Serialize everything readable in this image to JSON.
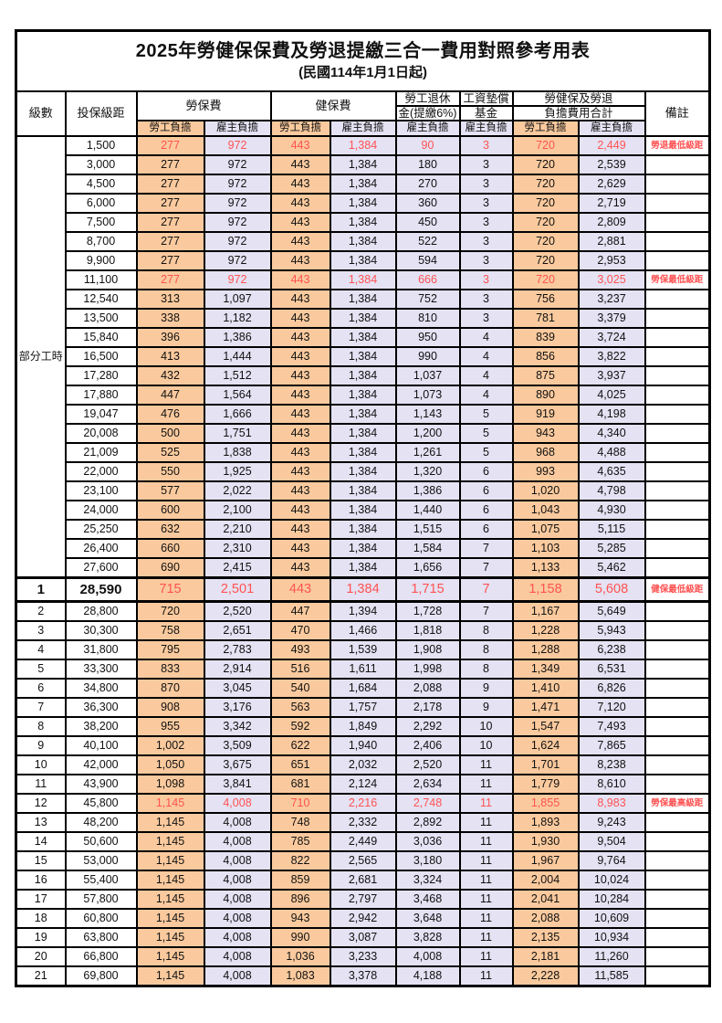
{
  "title": "2025年勞健保保費及勞退提繳三合一費用對照參考用表",
  "subtitle": "(民國114年1月1日起)",
  "colors": {
    "employee_bg": "#FACA9E",
    "employer_bg": "#E4E2F3",
    "highlight_red": "#FF5252",
    "border": "#000000"
  },
  "header": {
    "level": "級數",
    "bracket": "投保級距",
    "labor_insurance": "勞保費",
    "health_insurance": "健保費",
    "pension_line1": "勞工退休",
    "pension_line2": "金(提繳6%)",
    "wage_fund_line1": "工資墊償",
    "wage_fund_line2": "基金",
    "total_line1": "勞健保及勞退",
    "total_line2": "負擔費用合計",
    "remark": "備註",
    "employee_label": "勞工負擔",
    "employer_label": "雇主負擔"
  },
  "part_time": {
    "label": "部分工時",
    "span": 23
  },
  "rows": [
    {
      "bracket": "1,500",
      "values": [
        "277",
        "972",
        "443",
        "1,384",
        "90",
        "3",
        "720",
        "2,449"
      ],
      "remark": "勞退最低級距",
      "red": true
    },
    {
      "bracket": "3,000",
      "values": [
        "277",
        "972",
        "443",
        "1,384",
        "180",
        "3",
        "720",
        "2,539"
      ],
      "remark": ""
    },
    {
      "bracket": "4,500",
      "values": [
        "277",
        "972",
        "443",
        "1,384",
        "270",
        "3",
        "720",
        "2,629"
      ],
      "remark": ""
    },
    {
      "bracket": "6,000",
      "values": [
        "277",
        "972",
        "443",
        "1,384",
        "360",
        "3",
        "720",
        "2,719"
      ],
      "remark": ""
    },
    {
      "bracket": "7,500",
      "values": [
        "277",
        "972",
        "443",
        "1,384",
        "450",
        "3",
        "720",
        "2,809"
      ],
      "remark": ""
    },
    {
      "bracket": "8,700",
      "values": [
        "277",
        "972",
        "443",
        "1,384",
        "522",
        "3",
        "720",
        "2,881"
      ],
      "remark": ""
    },
    {
      "bracket": "9,900",
      "values": [
        "277",
        "972",
        "443",
        "1,384",
        "594",
        "3",
        "720",
        "2,953"
      ],
      "remark": ""
    },
    {
      "bracket": "11,100",
      "values": [
        "277",
        "972",
        "443",
        "1,384",
        "666",
        "3",
        "720",
        "3,025"
      ],
      "remark": "勞保最低級距",
      "red": true
    },
    {
      "bracket": "12,540",
      "values": [
        "313",
        "1,097",
        "443",
        "1,384",
        "752",
        "3",
        "756",
        "3,237"
      ],
      "remark": ""
    },
    {
      "bracket": "13,500",
      "values": [
        "338",
        "1,182",
        "443",
        "1,384",
        "810",
        "3",
        "781",
        "3,379"
      ],
      "remark": ""
    },
    {
      "bracket": "15,840",
      "values": [
        "396",
        "1,386",
        "443",
        "1,384",
        "950",
        "4",
        "839",
        "3,724"
      ],
      "remark": ""
    },
    {
      "bracket": "16,500",
      "values": [
        "413",
        "1,444",
        "443",
        "1,384",
        "990",
        "4",
        "856",
        "3,822"
      ],
      "remark": ""
    },
    {
      "bracket": "17,280",
      "values": [
        "432",
        "1,512",
        "443",
        "1,384",
        "1,037",
        "4",
        "875",
        "3,937"
      ],
      "remark": ""
    },
    {
      "bracket": "17,880",
      "values": [
        "447",
        "1,564",
        "443",
        "1,384",
        "1,073",
        "4",
        "890",
        "4,025"
      ],
      "remark": ""
    },
    {
      "bracket": "19,047",
      "values": [
        "476",
        "1,666",
        "443",
        "1,384",
        "1,143",
        "5",
        "919",
        "4,198"
      ],
      "remark": ""
    },
    {
      "bracket": "20,008",
      "values": [
        "500",
        "1,751",
        "443",
        "1,384",
        "1,200",
        "5",
        "943",
        "4,340"
      ],
      "remark": ""
    },
    {
      "bracket": "21,009",
      "values": [
        "525",
        "1,838",
        "443",
        "1,384",
        "1,261",
        "5",
        "968",
        "4,488"
      ],
      "remark": ""
    },
    {
      "bracket": "22,000",
      "values": [
        "550",
        "1,925",
        "443",
        "1,384",
        "1,320",
        "6",
        "993",
        "4,635"
      ],
      "remark": ""
    },
    {
      "bracket": "23,100",
      "values": [
        "577",
        "2,022",
        "443",
        "1,384",
        "1,386",
        "6",
        "1,020",
        "4,798"
      ],
      "remark": ""
    },
    {
      "bracket": "24,000",
      "values": [
        "600",
        "2,100",
        "443",
        "1,384",
        "1,440",
        "6",
        "1,043",
        "4,930"
      ],
      "remark": ""
    },
    {
      "bracket": "25,250",
      "values": [
        "632",
        "2,210",
        "443",
        "1,384",
        "1,515",
        "6",
        "1,075",
        "5,115"
      ],
      "remark": ""
    },
    {
      "bracket": "26,400",
      "values": [
        "660",
        "2,310",
        "443",
        "1,384",
        "1,584",
        "7",
        "1,103",
        "5,285"
      ],
      "remark": ""
    },
    {
      "bracket": "27,600",
      "values": [
        "690",
        "2,415",
        "443",
        "1,384",
        "1,656",
        "7",
        "1,133",
        "5,462"
      ],
      "remark": ""
    },
    {
      "level": "1",
      "bracket": "28,590",
      "values": [
        "715",
        "2,501",
        "443",
        "1,384",
        "1,715",
        "7",
        "1,158",
        "5,608"
      ],
      "remark": "健保最低級距",
      "red": true,
      "em": true
    },
    {
      "level": "2",
      "bracket": "28,800",
      "values": [
        "720",
        "2,520",
        "447",
        "1,394",
        "1,728",
        "7",
        "1,167",
        "5,649"
      ],
      "remark": ""
    },
    {
      "level": "3",
      "bracket": "30,300",
      "values": [
        "758",
        "2,651",
        "470",
        "1,466",
        "1,818",
        "8",
        "1,228",
        "5,943"
      ],
      "remark": ""
    },
    {
      "level": "4",
      "bracket": "31,800",
      "values": [
        "795",
        "2,783",
        "493",
        "1,539",
        "1,908",
        "8",
        "1,288",
        "6,238"
      ],
      "remark": ""
    },
    {
      "level": "5",
      "bracket": "33,300",
      "values": [
        "833",
        "2,914",
        "516",
        "1,611",
        "1,998",
        "8",
        "1,349",
        "6,531"
      ],
      "remark": ""
    },
    {
      "level": "6",
      "bracket": "34,800",
      "values": [
        "870",
        "3,045",
        "540",
        "1,684",
        "2,088",
        "9",
        "1,410",
        "6,826"
      ],
      "remark": ""
    },
    {
      "level": "7",
      "bracket": "36,300",
      "values": [
        "908",
        "3,176",
        "563",
        "1,757",
        "2,178",
        "9",
        "1,471",
        "7,120"
      ],
      "remark": ""
    },
    {
      "level": "8",
      "bracket": "38,200",
      "values": [
        "955",
        "3,342",
        "592",
        "1,849",
        "2,292",
        "10",
        "1,547",
        "7,493"
      ],
      "remark": ""
    },
    {
      "level": "9",
      "bracket": "40,100",
      "values": [
        "1,002",
        "3,509",
        "622",
        "1,940",
        "2,406",
        "10",
        "1,624",
        "7,865"
      ],
      "remark": ""
    },
    {
      "level": "10",
      "bracket": "42,000",
      "values": [
        "1,050",
        "3,675",
        "651",
        "2,032",
        "2,520",
        "11",
        "1,701",
        "8,238"
      ],
      "remark": ""
    },
    {
      "level": "11",
      "bracket": "43,900",
      "values": [
        "1,098",
        "3,841",
        "681",
        "2,124",
        "2,634",
        "11",
        "1,779",
        "8,610"
      ],
      "remark": ""
    },
    {
      "level": "12",
      "bracket": "45,800",
      "values": [
        "1,145",
        "4,008",
        "710",
        "2,216",
        "2,748",
        "11",
        "1,855",
        "8,983"
      ],
      "remark": "勞保最高級距",
      "red": true
    },
    {
      "level": "13",
      "bracket": "48,200",
      "values": [
        "1,145",
        "4,008",
        "748",
        "2,332",
        "2,892",
        "11",
        "1,893",
        "9,243"
      ],
      "remark": ""
    },
    {
      "level": "14",
      "bracket": "50,600",
      "values": [
        "1,145",
        "4,008",
        "785",
        "2,449",
        "3,036",
        "11",
        "1,930",
        "9,504"
      ],
      "remark": ""
    },
    {
      "level": "15",
      "bracket": "53,000",
      "values": [
        "1,145",
        "4,008",
        "822",
        "2,565",
        "3,180",
        "11",
        "1,967",
        "9,764"
      ],
      "remark": ""
    },
    {
      "level": "16",
      "bracket": "55,400",
      "values": [
        "1,145",
        "4,008",
        "859",
        "2,681",
        "3,324",
        "11",
        "2,004",
        "10,024"
      ],
      "remark": ""
    },
    {
      "level": "17",
      "bracket": "57,800",
      "values": [
        "1,145",
        "4,008",
        "896",
        "2,797",
        "3,468",
        "11",
        "2,041",
        "10,284"
      ],
      "remark": ""
    },
    {
      "level": "18",
      "bracket": "60,800",
      "values": [
        "1,145",
        "4,008",
        "943",
        "2,942",
        "3,648",
        "11",
        "2,088",
        "10,609"
      ],
      "remark": ""
    },
    {
      "level": "19",
      "bracket": "63,800",
      "values": [
        "1,145",
        "4,008",
        "990",
        "3,087",
        "3,828",
        "11",
        "2,135",
        "10,934"
      ],
      "remark": ""
    },
    {
      "level": "20",
      "bracket": "66,800",
      "values": [
        "1,145",
        "4,008",
        "1,036",
        "3,233",
        "4,008",
        "11",
        "2,181",
        "11,260"
      ],
      "remark": ""
    },
    {
      "level": "21",
      "bracket": "69,800",
      "values": [
        "1,145",
        "4,008",
        "1,083",
        "3,378",
        "4,188",
        "11",
        "2,228",
        "11,585"
      ],
      "remark": ""
    }
  ]
}
